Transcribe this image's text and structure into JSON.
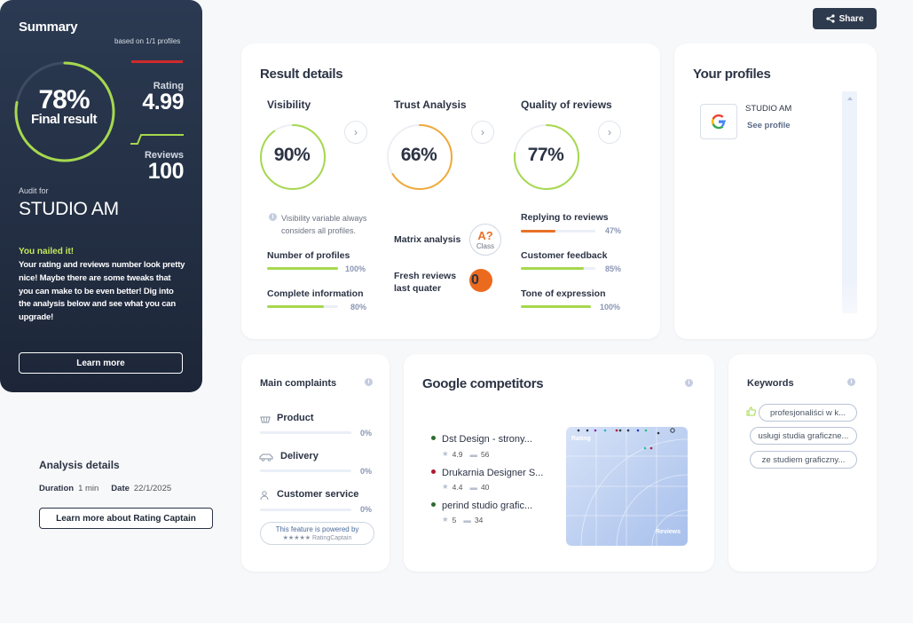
{
  "share": {
    "label": "Share"
  },
  "summary": {
    "title": "Summary",
    "based_on": "based on 1/1 profiles",
    "final_percent": "78%",
    "final_label": "Final result",
    "final_value": 0.78,
    "rating_label": "Rating",
    "rating_value": "4.99",
    "reviews_label": "Reviews",
    "reviews_value": "100",
    "audit_for_label": "Audit for",
    "audit_name": "STUDIO AM",
    "headline": "You nailed it!",
    "message": "Your rating and reviews number look pretty nice! Maybe there are some tweaks that you can make to be even better! Dig into the analysis below and see what you can upgrade!",
    "learn_more": "Learn more"
  },
  "analysis": {
    "title": "Analysis details",
    "duration_label": "Duration",
    "duration_value": "1 min",
    "date_label": "Date",
    "date_value": "22/1/2025",
    "learn_more_rc": "Learn more about Rating Captain"
  },
  "result": {
    "title": "Result details",
    "visibility": {
      "title": "Visibility",
      "percent": "90%",
      "value": 0.9,
      "note": "Visibility variable always considers all profiles.",
      "metrics": [
        {
          "label": "Number of profiles",
          "pct": "100%",
          "value": 1.0
        },
        {
          "label": "Complete information",
          "pct": "80%",
          "value": 0.8
        }
      ]
    },
    "trust": {
      "title": "Trust Analysis",
      "percent": "66%",
      "value": 0.66,
      "matrix_label": "Matrix analysis",
      "matrix_grade": "A?",
      "matrix_class": "Class",
      "fresh_label": "Fresh reviews last quater",
      "fresh_value": "0"
    },
    "quality": {
      "title": "Quality of reviews",
      "percent": "77%",
      "value": 0.77,
      "metrics": [
        {
          "label": "Replying to reviews",
          "pct": "47%",
          "value": 0.47,
          "color": "#e97127"
        },
        {
          "label": "Customer feedback",
          "pct": "85%",
          "value": 0.85,
          "color": "#a6d84e"
        },
        {
          "label": "Tone of expression",
          "pct": "100%",
          "value": 1.0,
          "color": "#a6d84e"
        }
      ]
    }
  },
  "profiles": {
    "title": "Your profiles",
    "items": [
      {
        "name": "STUDIO AM",
        "link": "See profile",
        "icon": "google-icon"
      }
    ]
  },
  "complaints": {
    "title": "Main complaints",
    "items": [
      {
        "label": "Product",
        "pct": "0%",
        "icon": "basket-icon"
      },
      {
        "label": "Delivery",
        "pct": "0%",
        "icon": "car-icon"
      },
      {
        "label": "Customer service",
        "pct": "0%",
        "icon": "person-icon"
      }
    ],
    "powered_line1": "This feature is powered by",
    "powered_line2": "★★★★★ RatingCaptain"
  },
  "competitors": {
    "title": "Google competitors",
    "items": [
      {
        "name": "Dst Design - strony...",
        "rating": "4.9",
        "reviews": "56",
        "color": "#2f6b2f"
      },
      {
        "name": "Drukarnia Designer S...",
        "rating": "4.4",
        "reviews": "40",
        "color": "#b0182f"
      },
      {
        "name": "perind studio grafic...",
        "rating": "5",
        "reviews": "34",
        "color": "#2f6b2f"
      }
    ],
    "plot_rating_label": "Rating",
    "plot_reviews_label": "Reviews"
  },
  "keywords": {
    "title": "Keywords",
    "items": [
      "profesjonaliści w k...",
      "usługi studia graficzne...",
      "ze studiem graficzny..."
    ]
  },
  "colors": {
    "green": "#a6d84e",
    "orange": "#f0a93a",
    "navy": "#2b3a52"
  }
}
